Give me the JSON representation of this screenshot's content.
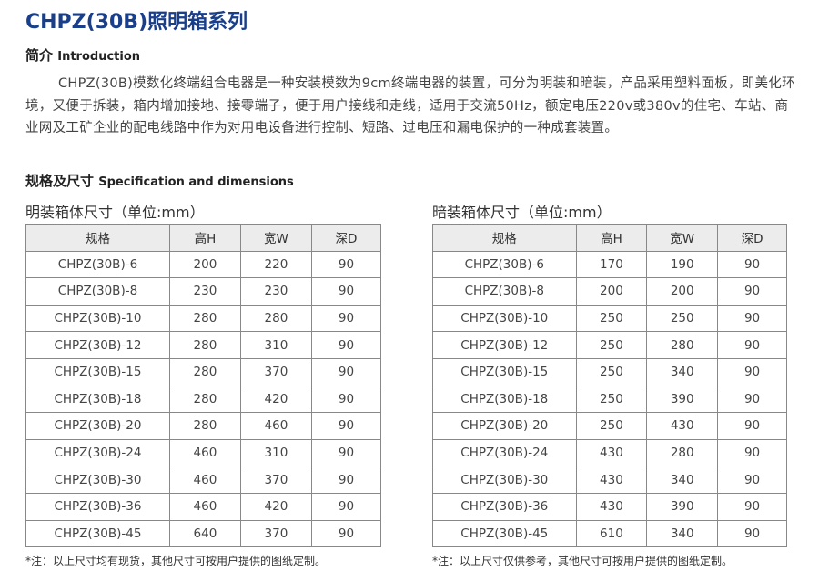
{
  "title": "CHPZ(30B)照明箱系列",
  "intro": {
    "heading_cn": "简介",
    "heading_en": "Introduction",
    "text": "CHPZ(30B)模数化终端组合电器是一种安装模数为9cm终端电器的装置，可分为明装和暗装，产品采用塑料面板，即美化环境，又便于拆装，箱内增加接地、接零端子，便于用户接线和走线，适用于交流50Hz，额定电压220v或380v的住宅、车站、商业网及工矿企业的配电线路中作为对用电设备进行控制、短路、过电压和漏电保护的一种成套装置。"
  },
  "spec": {
    "heading_cn": "规格及尺寸",
    "heading_en": "Specification and dimensions"
  },
  "tables": [
    {
      "caption": "明装箱体尺寸（单位:mm）",
      "headers": [
        "规格",
        "高H",
        "宽W",
        "深D"
      ],
      "rows": [
        [
          "CHPZ(30B)-6",
          "200",
          "220",
          "90"
        ],
        [
          "CHPZ(30B)-8",
          "230",
          "230",
          "90"
        ],
        [
          "CHPZ(30B)-10",
          "280",
          "280",
          "90"
        ],
        [
          "CHPZ(30B)-12",
          "280",
          "310",
          "90"
        ],
        [
          "CHPZ(30B)-15",
          "280",
          "370",
          "90"
        ],
        [
          "CHPZ(30B)-18",
          "280",
          "420",
          "90"
        ],
        [
          "CHPZ(30B)-20",
          "280",
          "460",
          "90"
        ],
        [
          "CHPZ(30B)-24",
          "460",
          "310",
          "90"
        ],
        [
          "CHPZ(30B)-30",
          "460",
          "370",
          "90"
        ],
        [
          "CHPZ(30B)-36",
          "460",
          "420",
          "90"
        ],
        [
          "CHPZ(30B)-45",
          "640",
          "370",
          "90"
        ]
      ],
      "note": "*注：以上尺寸均有现货，其他尺寸可按用户提供的图纸定制。"
    },
    {
      "caption": "暗装箱体尺寸（单位:mm）",
      "headers": [
        "规格",
        "高H",
        "宽W",
        "深D"
      ],
      "rows": [
        [
          "CHPZ(30B)-6",
          "170",
          "190",
          "90"
        ],
        [
          "CHPZ(30B)-8",
          "200",
          "200",
          "90"
        ],
        [
          "CHPZ(30B)-10",
          "250",
          "250",
          "90"
        ],
        [
          "CHPZ(30B)-12",
          "250",
          "280",
          "90"
        ],
        [
          "CHPZ(30B)-15",
          "250",
          "340",
          "90"
        ],
        [
          "CHPZ(30B)-18",
          "250",
          "390",
          "90"
        ],
        [
          "CHPZ(30B)-20",
          "250",
          "430",
          "90"
        ],
        [
          "CHPZ(30B)-24",
          "430",
          "280",
          "90"
        ],
        [
          "CHPZ(30B)-30",
          "430",
          "340",
          "90"
        ],
        [
          "CHPZ(30B)-36",
          "430",
          "390",
          "90"
        ],
        [
          "CHPZ(30B)-45",
          "610",
          "340",
          "90"
        ]
      ],
      "note": "*注：以上尺寸仅供参考，其他尺寸可按用户提供的图纸定制。"
    }
  ]
}
